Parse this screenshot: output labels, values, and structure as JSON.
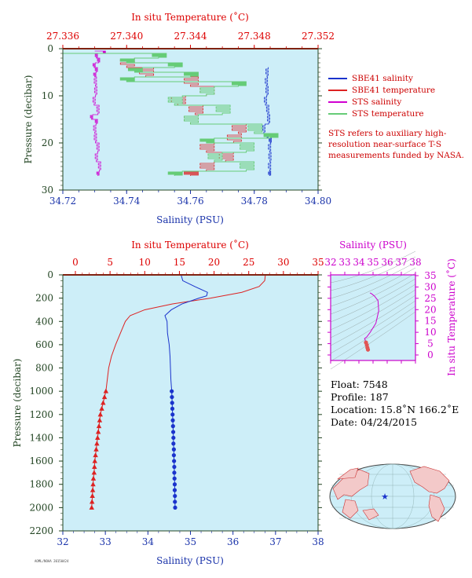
{
  "colors": {
    "salinity": "#1a33cc",
    "temperature": "#dd2222",
    "sts_salinity": "#d000d0",
    "sts_temperature": "#66cc77",
    "plot_bg": "#cdeef8",
    "axis_green": "#224422",
    "temp_axis": "#dd0000",
    "sal_axis": "#1a33aa",
    "ts_axis": "#cc00cc"
  },
  "top_panel": {
    "top_axis_title": "In situ Temperature (˚C)",
    "top_ticks": [
      "27.336",
      "27.340",
      "27.344",
      "27.348",
      "27.352"
    ],
    "bottom_axis_title": "Salinity (PSU)",
    "bottom_ticks": [
      "34.72",
      "34.74",
      "34.76",
      "34.78",
      "34.80"
    ],
    "y_axis_title": "Pressure (decibar)",
    "y_ticks": [
      "0",
      "10",
      "20",
      "30"
    ]
  },
  "legend": [
    {
      "label": "SBE41 salinity",
      "color": "#1a33cc"
    },
    {
      "label": "SBE41 temperature",
      "color": "#dd2222"
    },
    {
      "label": "STS salinity",
      "color": "#d000d0"
    },
    {
      "label": "STS temperature",
      "color": "#66cc77"
    }
  ],
  "note": "STS refers to auxiliary high-resolution near-surface T-S measurements funded by NASA.",
  "main_panel": {
    "top_axis_title": "In situ Temperature (˚C)",
    "top_ticks": [
      "0",
      "5",
      "10",
      "15",
      "20",
      "25",
      "30",
      "35"
    ],
    "bottom_axis_title": "Salinity (PSU)",
    "bottom_ticks": [
      "32",
      "33",
      "34",
      "35",
      "36",
      "37",
      "38"
    ],
    "y_axis_title": "Pressure (decibar)",
    "y_ticks": [
      "0",
      "200",
      "400",
      "600",
      "800",
      "1000",
      "1200",
      "1400",
      "1600",
      "1800",
      "2000",
      "2200"
    ]
  },
  "ts_panel": {
    "top_axis_title": "Salinity (PSU)",
    "top_ticks": [
      "32",
      "33",
      "34",
      "35",
      "36",
      "37",
      "38"
    ],
    "right_axis_title": "In situ Temperature (˚C)",
    "right_ticks": [
      "0",
      "5",
      "10",
      "15",
      "20",
      "25",
      "30",
      "35"
    ]
  },
  "info": {
    "float": "Float:  7548",
    "profile": "Profile:  187",
    "location": "Location:  15.8˚N  166.2˚E",
    "date": "Date:  04/24/2015"
  },
  "footer_code": "AOML/NOAA 20150424",
  "chart_data": [
    {
      "type": "line",
      "title": "",
      "xlabel": "Salinity (PSU)",
      "x2label": "In situ Temperature (˚C)",
      "ylabel": "Pressure (decibar)",
      "xlim": [
        34.72,
        34.8
      ],
      "x2lim": [
        27.336,
        27.352
      ],
      "ylim": [
        30,
        0
      ],
      "series": [
        {
          "name": "SBE41 salinity",
          "axis": "salinity",
          "pressure": [
            4,
            6,
            8,
            10,
            12,
            14,
            16,
            18,
            19,
            20,
            22,
            24,
            26,
            27
          ],
          "values": [
            34.7845,
            34.784,
            34.7838,
            34.784,
            34.7835,
            34.7842,
            34.7845,
            34.783,
            34.784,
            34.785,
            34.7848,
            34.7849,
            34.7848,
            34.7848
          ]
        },
        {
          "name": "SBE41 temperature",
          "axis": "temperature",
          "pressure": [
            2,
            4,
            6,
            8,
            10,
            12,
            14,
            16,
            18,
            20,
            22,
            24,
            26,
            27
          ],
          "values": [
            27.3416,
            27.34,
            27.3412,
            27.344,
            27.345,
            27.3432,
            27.3443,
            27.344,
            27.347,
            27.3467,
            27.345,
            27.3462,
            27.345,
            27.344
          ]
        },
        {
          "name": "STS salinity",
          "axis": "salinity",
          "pressure": [
            0.5,
            1,
            2,
            3,
            4,
            5,
            6,
            8,
            10,
            12,
            14,
            15,
            16,
            18,
            20,
            22,
            24,
            26,
            27
          ],
          "values": [
            34.73,
            34.733,
            34.7305,
            34.7312,
            34.7298,
            34.7305,
            34.73,
            34.7302,
            34.7303,
            34.7298,
            34.731,
            34.729,
            34.7305,
            34.73,
            34.7302,
            34.731,
            34.7305,
            34.7315,
            34.731
          ]
        },
        {
          "name": "STS temperature",
          "axis": "temperature",
          "pressure": [
            1,
            2,
            3,
            4,
            5,
            6,
            7,
            8,
            10,
            12,
            14,
            16,
            18,
            19,
            20,
            22,
            24,
            26,
            27
          ],
          "values": [
            27.336,
            27.342,
            27.34,
            27.343,
            27.3405,
            27.344,
            27.34,
            27.347,
            27.345,
            27.343,
            27.346,
            27.344,
            27.348,
            27.349,
            27.345,
            27.3475,
            27.3455,
            27.3475,
            27.343
          ]
        }
      ]
    },
    {
      "type": "line",
      "title": "",
      "xlabel": "Salinity (PSU)",
      "x2label": "In situ Temperature (˚C)",
      "ylabel": "Pressure (decibar)",
      "xlim": [
        32,
        38
      ],
      "x2lim": [
        0,
        35
      ],
      "ylim": [
        2200,
        0
      ],
      "series": [
        {
          "name": "Temperature",
          "axis": "temperature",
          "pressure": [
            0,
            50,
            100,
            150,
            200,
            250,
            300,
            350,
            400,
            500,
            600,
            700,
            800,
            900,
            1000
          ],
          "values": [
            27.4,
            27.3,
            26.5,
            24,
            19.5,
            14,
            10,
            7.9,
            7.2,
            6.5,
            5.8,
            5.2,
            4.8,
            4.6,
            4.4
          ]
        },
        {
          "name": "Salinity",
          "axis": "salinity",
          "pressure": [
            0,
            50,
            100,
            150,
            180,
            200,
            250,
            300,
            350,
            400,
            500,
            600,
            700,
            800,
            900,
            1000
          ],
          "values": [
            34.78,
            34.82,
            35.1,
            35.4,
            35.38,
            35.2,
            34.8,
            34.55,
            34.4,
            34.45,
            34.46,
            34.5,
            34.52,
            34.53,
            34.54,
            34.56
          ]
        },
        {
          "name": "Temperature samples",
          "axis": "temperature",
          "marker": "triangle",
          "pressure": [
            1000,
            1050,
            1100,
            1150,
            1200,
            1250,
            1300,
            1350,
            1400,
            1450,
            1500,
            1550,
            1600,
            1650,
            1700,
            1750,
            1800,
            1850,
            1900,
            1950,
            2000
          ],
          "values": [
            4.4,
            4.2,
            4.0,
            3.8,
            3.6,
            3.5,
            3.4,
            3.3,
            3.2,
            3.1,
            3.0,
            2.9,
            2.8,
            2.75,
            2.7,
            2.6,
            2.55,
            2.5,
            2.45,
            2.4,
            2.35
          ]
        },
        {
          "name": "Salinity samples",
          "axis": "salinity",
          "marker": "circle",
          "pressure": [
            1000,
            1050,
            1100,
            1150,
            1200,
            1250,
            1300,
            1350,
            1400,
            1450,
            1500,
            1550,
            1600,
            1650,
            1700,
            1750,
            1800,
            1850,
            1900,
            1950,
            2000
          ],
          "values": [
            34.56,
            34.565,
            34.57,
            34.575,
            34.58,
            34.585,
            34.59,
            34.595,
            34.6,
            34.6,
            34.61,
            34.61,
            34.615,
            34.62,
            34.62,
            34.625,
            34.63,
            34.63,
            34.635,
            34.635,
            34.64
          ]
        }
      ]
    },
    {
      "type": "scatter",
      "title": "",
      "xlabel": "Salinity (PSU)",
      "ylabel": "In situ Temperature (˚C)",
      "xlim": [
        32,
        38
      ],
      "ylim": [
        -2,
        35
      ],
      "series": [
        {
          "name": "T-S curve",
          "salinity": [
            34.78,
            34.9,
            35.1,
            35.35,
            35.4,
            35.2,
            34.8,
            34.55,
            34.4,
            34.45,
            34.5,
            34.56,
            34.6,
            34.64
          ],
          "temperature": [
            27.4,
            27,
            26,
            24,
            19.5,
            14,
            10,
            7.9,
            7.2,
            6.5,
            5.5,
            4.4,
            3.2,
            2.35
          ]
        }
      ]
    }
  ]
}
